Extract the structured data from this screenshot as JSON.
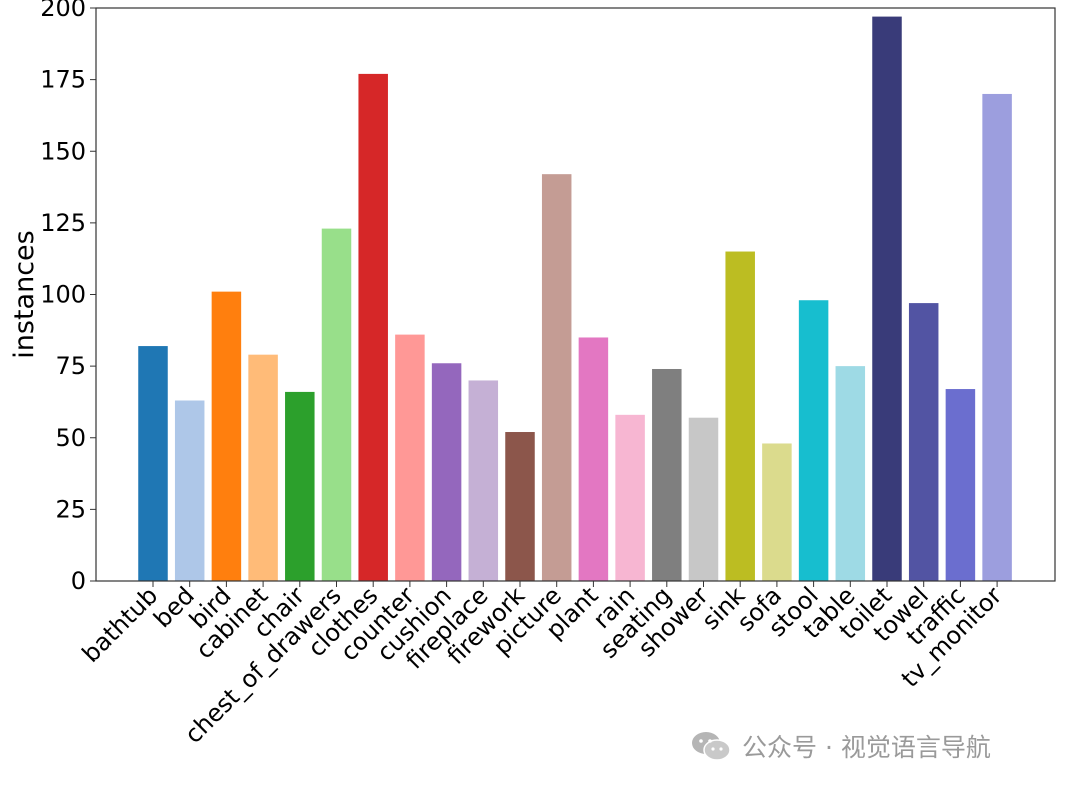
{
  "chart_data": {
    "type": "bar",
    "title": "",
    "xlabel": "",
    "ylabel": "instances",
    "ylim": [
      0,
      200
    ],
    "yticks": [
      0,
      25,
      50,
      75,
      100,
      125,
      150,
      175,
      200
    ],
    "grid": false,
    "categories": [
      "bathtub",
      "bed",
      "bird",
      "cabinet",
      "chair",
      "chest_of_drawers",
      "clothes",
      "counter",
      "cushion",
      "fireplace",
      "firework",
      "picture",
      "plant",
      "rain",
      "seating",
      "shower",
      "sink",
      "sofa",
      "stool",
      "table",
      "toilet",
      "towel",
      "traffic",
      "tv_monitor"
    ],
    "values": [
      82,
      63,
      101,
      79,
      66,
      123,
      177,
      86,
      76,
      70,
      52,
      142,
      85,
      58,
      74,
      57,
      115,
      48,
      98,
      75,
      197,
      97,
      67,
      170
    ],
    "colors": [
      "#1f77b4",
      "#aec7e8",
      "#ff7f0e",
      "#ffbb78",
      "#2ca02c",
      "#98df8a",
      "#d62728",
      "#ff9896",
      "#9467bd",
      "#c5b0d5",
      "#8c564b",
      "#c49c94",
      "#e377c2",
      "#f7b6d2",
      "#7f7f7f",
      "#c7c7c7",
      "#bcbd22",
      "#dbdb8d",
      "#17becf",
      "#9edae5",
      "#393b79",
      "#5254a3",
      "#6b6ecf",
      "#9c9ede"
    ]
  },
  "watermark": {
    "text": "公众号 · 视觉语言导航",
    "icon": "wechat-icon"
  }
}
